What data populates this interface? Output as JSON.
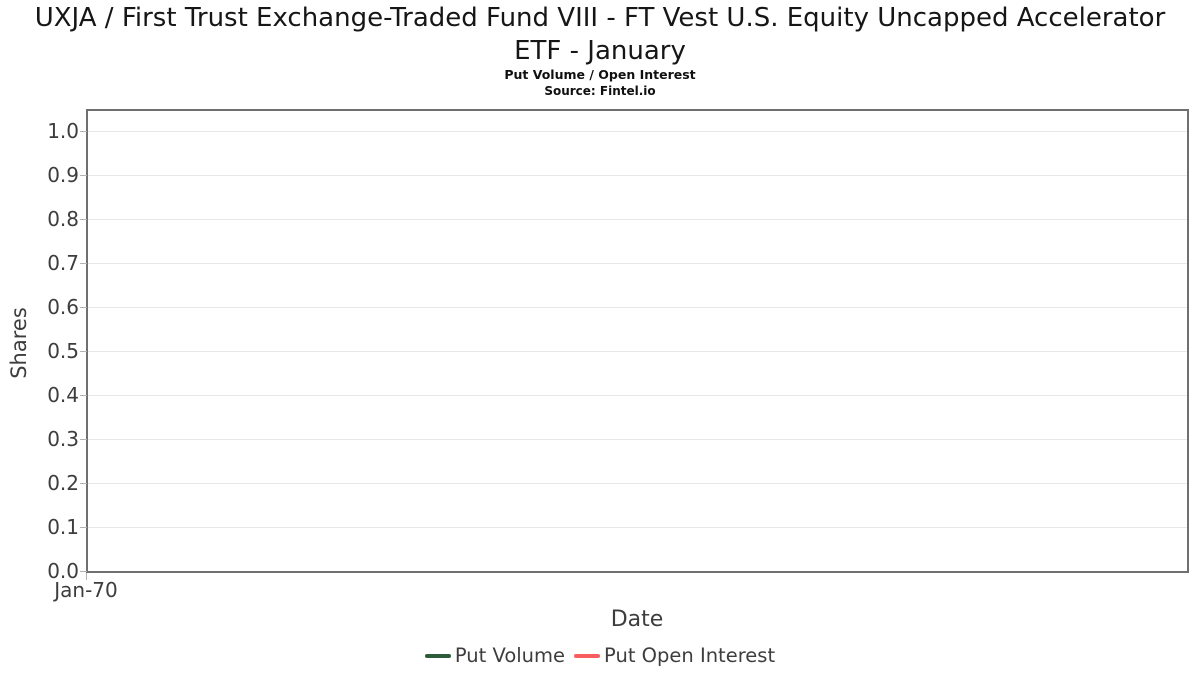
{
  "chart_data": {
    "type": "line",
    "title": "UXJA / First Trust Exchange-Traded Fund VIII - FT Vest U.S. Equity Uncapped Accelerator ETF - January",
    "subtitle": "Put Volume / Open Interest",
    "source": "Source: Fintel.io",
    "xlabel": "Date",
    "ylabel": "Shares",
    "x_tick_labels": [
      "Jan-70"
    ],
    "y_tick_labels": [
      "0.0",
      "0.1",
      "0.2",
      "0.3",
      "0.4",
      "0.5",
      "0.6",
      "0.7",
      "0.8",
      "0.9",
      "1.0"
    ],
    "ylim": [
      0.0,
      1.05
    ],
    "grid": true,
    "legend_position": "bottom-center",
    "series": [
      {
        "name": "Put Volume",
        "color": "#2b5d39",
        "x": [],
        "values": []
      },
      {
        "name": "Put Open Interest",
        "color": "#fa5d5d",
        "x": [],
        "values": []
      }
    ]
  },
  "colors": {
    "plot_border": "#6f6f6f",
    "gridline": "#e7e7e7",
    "tick_text": "#3d3d3d",
    "title_text": "#161616"
  }
}
